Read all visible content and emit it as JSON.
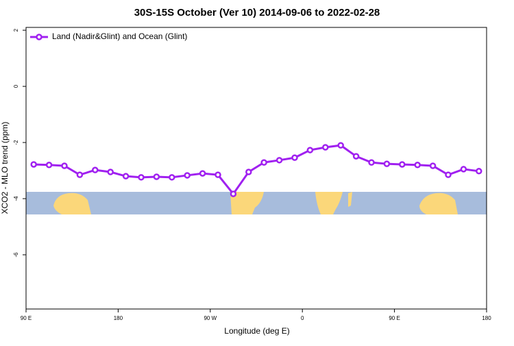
{
  "chart_data": {
    "type": "line",
    "title": "30S-15S October (Ver 10)   2014-09-06 to 2022-02-28",
    "x_label": "Longitude (deg E)",
    "y_label": "XCO2 - MLO trend (ppm)",
    "x": [
      97.5,
      112.5,
      127.5,
      142.5,
      157.5,
      172.5,
      187.5,
      202.5,
      217.5,
      232.5,
      247.5,
      262.5,
      277.5,
      292.5,
      307.5,
      322.5,
      337.5,
      352.5,
      367.5,
      382.5,
      397.5,
      412.5,
      427.5,
      442.5,
      457.5,
      472.5,
      487.5,
      502.5,
      517.5,
      532.5
    ],
    "series": [
      {
        "name": "Land (Nadir&Glint) and Ocean (Glint)",
        "color": "#a020f0",
        "values": [
          -2.78,
          -2.8,
          -2.83,
          -3.15,
          -2.98,
          -3.05,
          -3.2,
          -3.24,
          -3.22,
          -3.24,
          -3.17,
          -3.1,
          -3.15,
          -3.83,
          -3.05,
          -2.71,
          -2.63,
          -2.54,
          -2.27,
          -2.17,
          -2.1,
          -2.49,
          -2.71,
          -2.76,
          -2.78,
          -2.8,
          -2.83,
          -3.15,
          -2.95,
          -3.02
        ]
      }
    ],
    "xlim": [
      90,
      540
    ],
    "xticks": [
      {
        "value": 90,
        "label": "90 E"
      },
      {
        "value": 180,
        "label": "180"
      },
      {
        "value": 270,
        "label": "90 W"
      },
      {
        "value": 360,
        "label": "0"
      },
      {
        "value": 450,
        "label": "90 E"
      },
      {
        "value": 540,
        "label": "180"
      }
    ],
    "ylim": [
      -7.93,
      2.1
    ],
    "yticks": [
      2,
      0,
      -2,
      -4,
      -6
    ],
    "legend": "top-left"
  }
}
